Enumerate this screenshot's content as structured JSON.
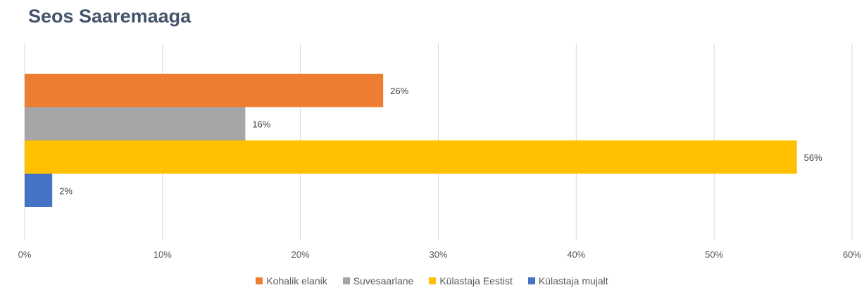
{
  "chart_data": {
    "type": "bar",
    "orientation": "horizontal",
    "title": "Seos Saaremaaga",
    "xlim": [
      0,
      60
    ],
    "x_ticks": [
      "0%",
      "10%",
      "20%",
      "30%",
      "40%",
      "50%",
      "60%"
    ],
    "grid": true,
    "legend_position": "bottom",
    "series": [
      {
        "name": "Kohalik elanik",
        "value": 26,
        "label": "26%",
        "color": "#ed7d31"
      },
      {
        "name": "Suvesaarlane",
        "value": 16,
        "label": "16%",
        "color": "#a5a5a5"
      },
      {
        "name": "Külastaja Eestist",
        "value": 56,
        "label": "56%",
        "color": "#ffc000"
      },
      {
        "name": "Külastaja mujalt",
        "value": 2,
        "label": "2%",
        "color": "#4472c4"
      }
    ]
  }
}
